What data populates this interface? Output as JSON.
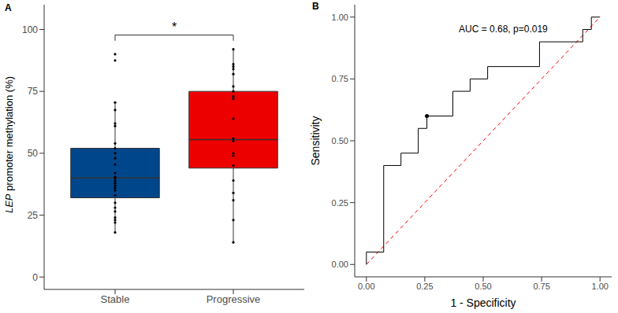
{
  "chart_data": [
    {
      "type": "box",
      "panel_label": "A",
      "categories": [
        "Stable",
        "Progressive"
      ],
      "colors": [
        "#00468B",
        "#ED0000"
      ],
      "boxes": [
        {
          "whisker_low": 18,
          "q1": 32,
          "median": 40,
          "q3": 52,
          "whisker_high": 70.5,
          "points": [
            90,
            87.5,
            70.5,
            67.5,
            62,
            61,
            54,
            52,
            50,
            48,
            45.5,
            42,
            40.5,
            40,
            39,
            38,
            37,
            36,
            35,
            33,
            30,
            28,
            26.5,
            24,
            23,
            22,
            18
          ]
        },
        {
          "whisker_low": 14,
          "q1": 44,
          "median": 55.5,
          "q3": 75,
          "whisker_high": 92,
          "points": [
            92,
            86,
            85,
            84,
            82,
            77,
            75,
            73,
            72,
            64,
            56,
            55,
            50,
            49,
            45,
            39,
            34,
            31,
            23,
            14
          ]
        }
      ],
      "y_label": "LEP promoter methylation (%)",
      "annotation": "*",
      "ylim": [
        -5,
        110
      ],
      "yticks": [
        0,
        25,
        50,
        75,
        100
      ]
    },
    {
      "type": "line",
      "panel_label": "B",
      "x": [
        0,
        0,
        0.074,
        0.074,
        0.148,
        0.148,
        0.222,
        0.222,
        0.259,
        0.259,
        0.37,
        0.37,
        0.444,
        0.444,
        0.519,
        0.519,
        0.741,
        0.741,
        0.926,
        0.926,
        0.963,
        0.963,
        1
      ],
      "values": [
        0,
        0.05,
        0.05,
        0.4,
        0.4,
        0.45,
        0.45,
        0.55,
        0.55,
        0.6,
        0.6,
        0.7,
        0.7,
        0.75,
        0.75,
        0.8,
        0.8,
        0.9,
        0.9,
        0.95,
        0.95,
        1,
        1
      ],
      "color": "#000000",
      "highlight": {
        "x": 0.259,
        "y": 0.6
      },
      "reference_line": {
        "x": [
          0,
          1
        ],
        "y": [
          0,
          1
        ],
        "color": "#FF0000",
        "line_style": "dashed"
      },
      "annotation": "AUC = 0.68, p=0.019",
      "x_label": "1 - Specificity",
      "y_label": "Sensitivity",
      "xlim": [
        -0.05,
        1.05
      ],
      "xticks": [
        {
          "value": 0,
          "label": "0.00"
        },
        {
          "value": 0.25,
          "label": "0.25"
        },
        {
          "value": 0.5,
          "label": "0.50"
        },
        {
          "value": 0.75,
          "label": "0.75"
        },
        {
          "value": 1,
          "label": "1.00"
        }
      ],
      "ylim": [
        -0.05,
        1.05
      ],
      "yticks": [
        {
          "value": 0,
          "label": "0.00"
        },
        {
          "value": 0.25,
          "label": "0.25"
        },
        {
          "value": 0.5,
          "label": "0.50"
        },
        {
          "value": 0.75,
          "label": "0.75"
        },
        {
          "value": 1,
          "label": "1.00"
        }
      ]
    }
  ]
}
